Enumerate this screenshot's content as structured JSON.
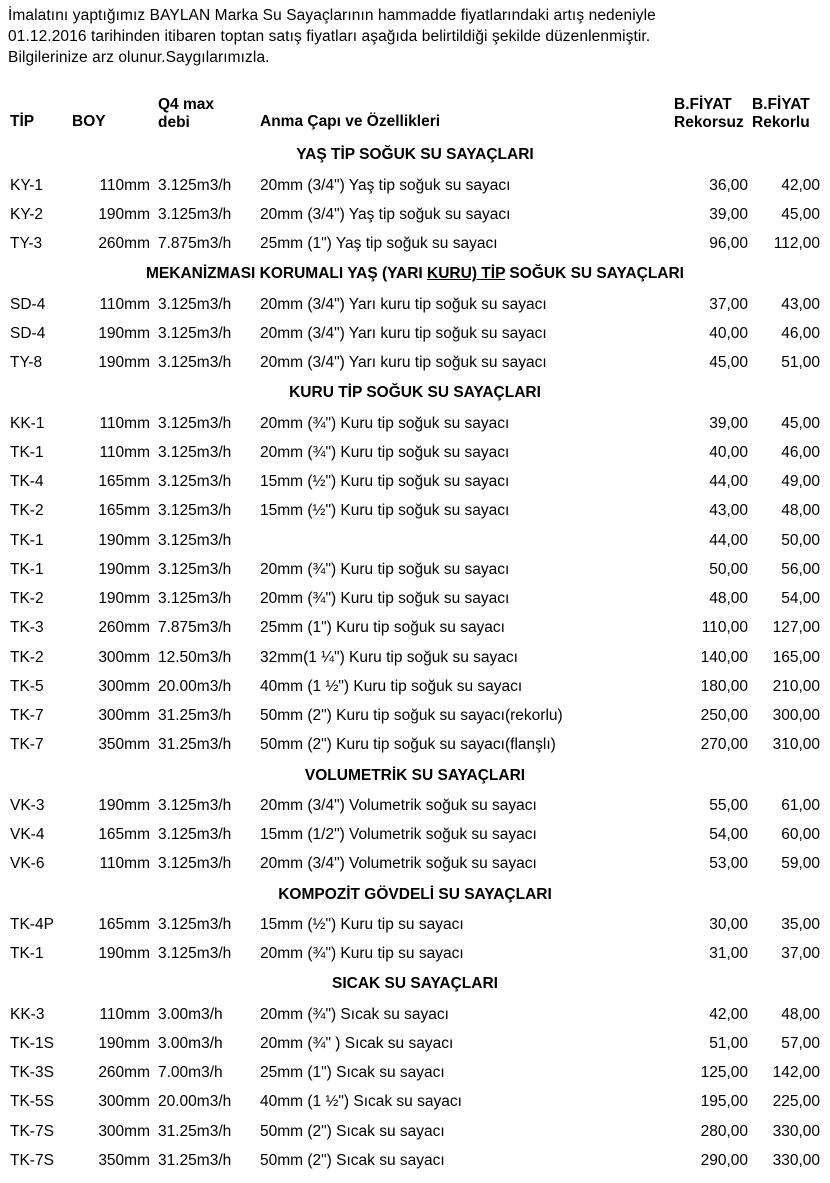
{
  "intro": {
    "line1": "İmalatını yaptığımız BAYLAN Marka Su Sayaçlarının hammadde fiyatlarındaki artış nedeniyle",
    "line2": "01.12.2016 tarihinden itibaren toptan satış fiyatları aşağıda belirtildiği şekilde düzenlenmiştir.",
    "line3": "Bilgilerinize arz olunur.Saygılarımızla."
  },
  "headers": {
    "tip": "TİP",
    "boy": "BOY",
    "debi_top": "Q4 max",
    "debi_bot": "debi",
    "desc": "Anma Çapı ve Özellikleri",
    "p1_top": "B.FİYAT",
    "p1_bot": "Rekorsuz",
    "p2_top": "B.FİYAT",
    "p2_bot": "Rekorlu"
  },
  "sections": [
    {
      "title": "YAŞ TİP SOĞUK SU SAYAÇLARI",
      "rows": [
        {
          "tip": "KY-1",
          "boy": "110mm",
          "debi": "3.125m3/h",
          "desc": "20mm (3/4\")  Yaş tip soğuk su sayacı",
          "p1": "36,00",
          "p2": "42,00"
        },
        {
          "tip": "KY-2",
          "boy": "190mm",
          "debi": "3.125m3/h",
          "desc": "20mm (3/4\")  Yaş tip soğuk su sayacı",
          "p1": "39,00",
          "p2": "45,00"
        },
        {
          "tip": "TY-3",
          "boy": "260mm",
          "debi": "7.875m3/h",
          "desc": "25mm  (1\")   Yaş tip soğuk su sayacı",
          "p1": "96,00",
          "p2": "112,00"
        }
      ]
    },
    {
      "title_html": "MEKANİZMASI KORUMALI YAŞ (YARI <span class=\"u\">KURU) TİP</span> SOĞUK SU SAYAÇLARI",
      "rows": [
        {
          "tip": "SD-4",
          "boy": "110mm",
          "debi": "3.125m3/h",
          "desc": "20mm (3/4\") Yarı kuru tip soğuk su sayacı",
          "p1": "37,00",
          "p2": "43,00"
        },
        {
          "tip": "SD-4",
          "boy": "190mm",
          "debi": "3.125m3/h",
          "desc": "20mm (3/4\") Yarı kuru tip soğuk su sayacı",
          "p1": "40,00",
          "p2": "46,00"
        },
        {
          "tip": "TY-8",
          "boy": "190mm",
          "debi": "3.125m3/h",
          "desc": "20mm (3/4\") Yarı kuru tip soğuk su sayacı",
          "p1": "45,00",
          "p2": "51,00"
        }
      ]
    },
    {
      "title": "KURU TİP SOĞUK SU SAYAÇLARI",
      "rows": [
        {
          "tip": "KK-1",
          "boy": "110mm",
          "debi": "3.125m3/h",
          "desc": "20mm (¾\")   Kuru tip soğuk su sayacı",
          "p1": "39,00",
          "p2": "45,00"
        },
        {
          "tip": "TK-1",
          "boy": "110mm",
          "debi": "3.125m3/h",
          "desc": "20mm (¾\")   Kuru tip soğuk su sayacı",
          "p1": "40,00",
          "p2": "46,00"
        },
        {
          "tip": "TK-4",
          "boy": "165mm",
          "debi": "3.125m3/h",
          "desc": "15mm (½\")   Kuru tip soğuk su sayacı",
          "p1": "44,00",
          "p2": "49,00"
        },
        {
          "tip": "TK-2",
          "boy": "165mm",
          "debi": "3.125m3/h",
          "desc": "15mm (½\")   Kuru tip soğuk su sayacı",
          "p1": "43,00",
          "p2": "48,00"
        },
        {
          "tip": "TK-1",
          "boy": "190mm",
          "debi": "3.125m3/h",
          "desc": "",
          "p1": "44,00",
          "p2": "50,00"
        },
        {
          "tip": "TK-1",
          "boy": "190mm",
          "debi": "3.125m3/h",
          "desc": "20mm (¾\")   Kuru tip soğuk su sayacı",
          "p1": "50,00",
          "p2": "56,00"
        },
        {
          "tip": "TK-2",
          "boy": "190mm",
          "debi": "3.125m3/h",
          "desc": "20mm (¾\")   Kuru tip soğuk su sayacı",
          "p1": "48,00",
          "p2": "54,00"
        },
        {
          "tip": "TK-3",
          "boy": "260mm",
          "debi": "7.875m3/h",
          "desc": "25mm  (1\")   Kuru tip soğuk su sayacı",
          "p1": "110,00",
          "p2": "127,00"
        },
        {
          "tip": "TK-2",
          "boy": "300mm",
          "debi": "12.50m3/h",
          "desc": "32mm(1 ¼\")  Kuru tip soğuk su sayacı",
          "p1": "140,00",
          "p2": "165,00"
        },
        {
          "tip": "TK-5",
          "boy": "300mm",
          "debi": "20.00m3/h",
          "desc": "40mm (1 ½\") Kuru tip soğuk su sayacı",
          "p1": "180,00",
          "p2": "210,00"
        },
        {
          "tip": "TK-7",
          "boy": "300mm",
          "debi": "31.25m3/h",
          "desc": "50mm (2\")  Kuru tip soğuk su sayacı(rekorlu)",
          "p1": "250,00",
          "p2": "300,00"
        },
        {
          "tip": "TK-7",
          "boy": "350mm",
          "debi": "31.25m3/h",
          "desc": "50mm (2\")  Kuru tip soğuk su sayacı(flanşlı)",
          "p1": "270,00",
          "p2": "310,00"
        }
      ]
    },
    {
      "title": "VOLUMETRİK SU SAYAÇLARI",
      "rows": [
        {
          "tip": "VK-3",
          "boy": "190mm",
          "debi": "3.125m3/h",
          "desc": "20mm (3/4\")  Volumetrik soğuk su sayacı",
          "p1": "55,00",
          "p2": "61,00"
        },
        {
          "tip": "VK-4",
          "boy": "165mm",
          "debi": "3.125m3/h",
          "desc": "15mm (1/2\")  Volumetrik soğuk su sayacı",
          "p1": "54,00",
          "p2": "60,00"
        },
        {
          "tip": "VK-6",
          "boy": "110mm",
          "debi": "3.125m3/h",
          "desc": "20mm (3/4\")  Volumetrik soğuk su sayacı",
          "p1": "53,00",
          "p2": "59,00"
        }
      ]
    },
    {
      "title": "KOMPOZİT GÖVDELİ SU SAYAÇLARI",
      "rows": [
        {
          "tip": "TK-4P",
          "boy": "165mm",
          "debi": "3.125m3/h",
          "desc": "15mm (½\")   Kuru tip su sayacı",
          "p1": "30,00",
          "p2": "35,00"
        },
        {
          "tip": "TK-1",
          "boy": "190mm",
          "debi": "3.125m3/h",
          "desc": "20mm (¾\")   Kuru tip su sayacı",
          "p1": "31,00",
          "p2": "37,00"
        }
      ]
    },
    {
      "title": "SICAK SU SAYAÇLARI",
      "rows": [
        {
          "tip": "KK-3",
          "boy": "110mm",
          "debi": "3.00m3/h",
          "desc": "20mm (¾\")    Sıcak su sayacı",
          "p1": "42,00",
          "p2": "48,00"
        },
        {
          "tip": "TK-1S",
          "boy": "190mm",
          "debi": "3.00m3/h",
          "desc": "20mm (¾\" )   Sıcak su sayacı",
          "p1": "51,00",
          "p2": "57,00"
        },
        {
          "tip": "TK-3S",
          "boy": "260mm",
          "debi": "7.00m3/h",
          "desc": "25mm (1\")    Sıcak su sayacı",
          "p1": "125,00",
          "p2": "142,00"
        },
        {
          "tip": "TK-5S",
          "boy": "300mm",
          "debi": "20.00m3/h",
          "desc": "40mm (1 ½\") Sıcak su sayacı",
          "p1": "195,00",
          "p2": "225,00"
        },
        {
          "tip": "TK-7S",
          "boy": "300mm",
          "debi": "31.25m3/h",
          "desc": "50mm (2\")    Sıcak su sayacı",
          "p1": "280,00",
          "p2": "330,00"
        },
        {
          "tip": "TK-7S",
          "boy": "350mm",
          "debi": "31.25m3/h",
          "desc": "50mm (2\")    Sıcak su sayacı",
          "p1": "290,00",
          "p2": "330,00"
        }
      ]
    }
  ]
}
